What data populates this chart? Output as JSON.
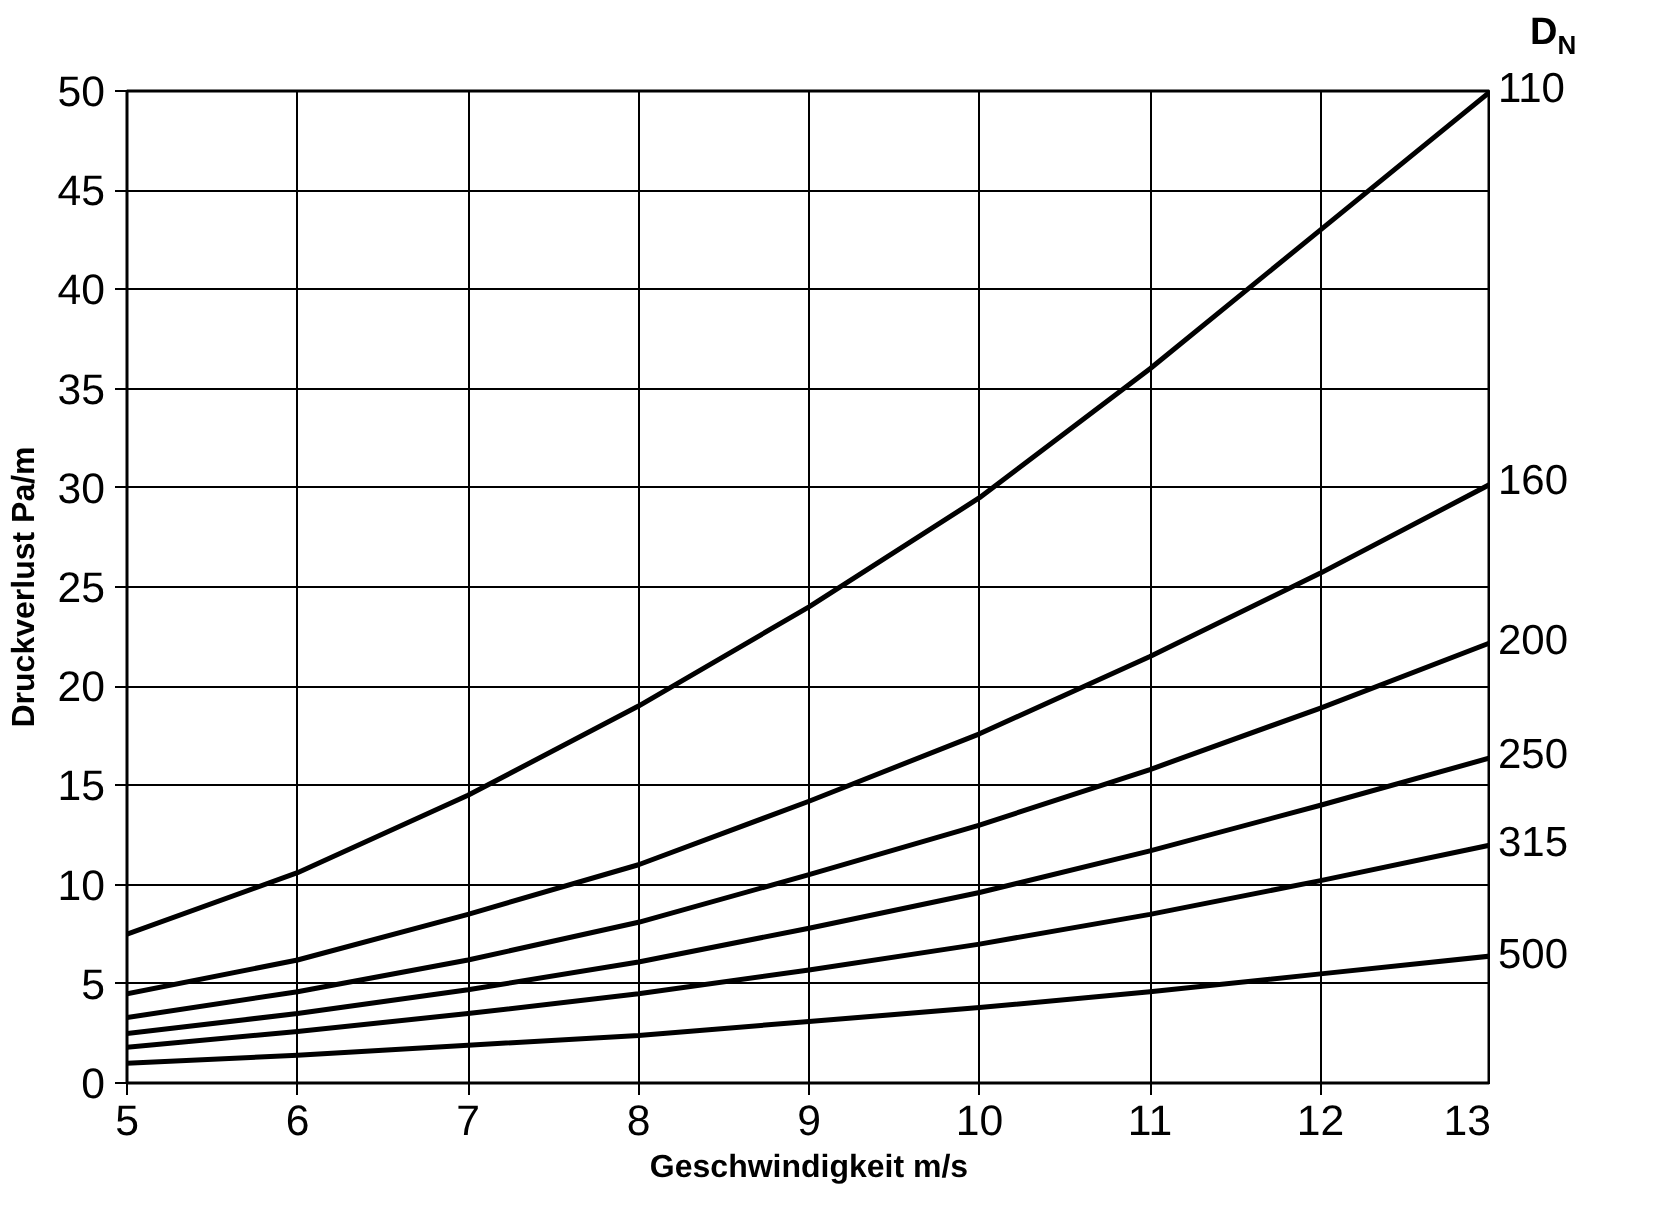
{
  "chart_data": {
    "type": "line",
    "xlabel": "Geschwindigkeit m/s",
    "ylabel": "Druckverlust Pa/m",
    "legend_title": "D$_{N}$",
    "x": [
      5,
      6,
      7,
      8,
      9,
      10,
      11,
      12,
      13
    ],
    "series": [
      {
        "name": "110",
        "color": "#000000",
        "values": [
          7.5,
          10.6,
          14.5,
          19,
          24,
          29.5,
          36,
          43,
          50
        ]
      },
      {
        "name": "160",
        "color": "#000000",
        "values": [
          4.5,
          6.2,
          8.5,
          11,
          14.2,
          17.6,
          21.5,
          25.7,
          30.2
        ]
      },
      {
        "name": "200",
        "color": "#000000",
        "values": [
          3.3,
          4.6,
          6.2,
          8.1,
          10.5,
          13,
          15.8,
          18.9,
          22.2
        ]
      },
      {
        "name": "250",
        "color": "#000000",
        "values": [
          2.5,
          3.5,
          4.7,
          6.1,
          7.8,
          9.6,
          11.7,
          14,
          16.4
        ]
      },
      {
        "name": "315",
        "color": "#000000",
        "values": [
          1.8,
          2.6,
          3.5,
          4.5,
          5.7,
          7.0,
          8.5,
          10.2,
          12
        ]
      },
      {
        "name": "500",
        "color": "#000000",
        "values": [
          1.0,
          1.4,
          1.9,
          2.4,
          3.1,
          3.8,
          4.6,
          5.5,
          6.4
        ]
      }
    ],
    "xlim": [
      5,
      13
    ],
    "xticks": [
      5,
      6,
      7,
      8,
      9,
      10,
      11,
      12,
      13
    ],
    "ylim": [
      0,
      50
    ],
    "yticks": [
      0,
      5,
      10,
      15,
      20,
      25,
      30,
      35,
      40,
      45,
      50
    ],
    "grid": true,
    "marker": "none",
    "line_style": "solid"
  }
}
